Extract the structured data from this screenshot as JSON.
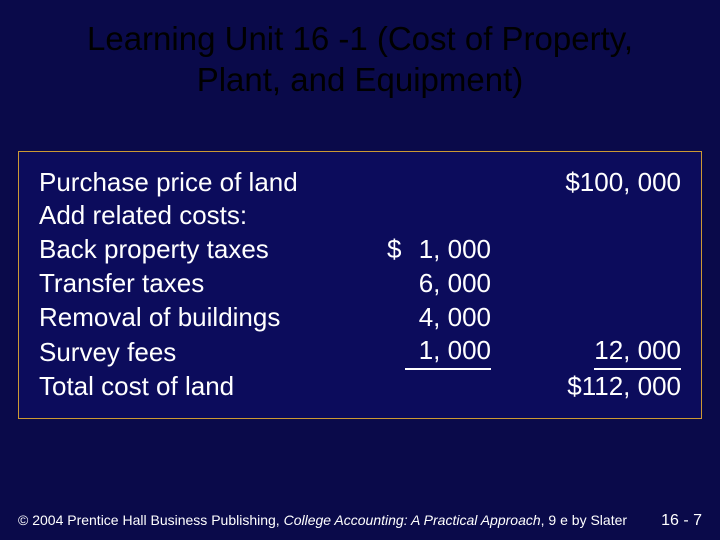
{
  "title": "Learning Unit 16 -1 (Cost of Property, Plant, and Equipment)",
  "rows": {
    "purchase": {
      "label": "Purchase price of land",
      "right": "$100, 000"
    },
    "add": {
      "label": "Add related costs:"
    },
    "back_taxes": {
      "label": "Back property taxes",
      "mid_dollar": "$",
      "mid_num": "1, 000"
    },
    "transfer": {
      "label": "Transfer taxes",
      "mid_num": "6, 000"
    },
    "removal": {
      "label": "Removal of buildings",
      "mid_num": "4, 000"
    },
    "survey": {
      "label": "Survey fees",
      "mid_num": "1, 000",
      "right": "12, 000"
    },
    "total": {
      "label": "Total cost of land",
      "right": "$112, 000"
    }
  },
  "footer": {
    "copyright_a": "© 2004 Prentice Hall Business Publishing, ",
    "copyright_italic": "College Accounting: A Practical Approach",
    "copyright_b": ", 9 e by Slater",
    "page": "16 - 7"
  },
  "colors": {
    "background": "#0a0a4a",
    "box_bg": "#0c0c5c",
    "box_border": "#cc9933",
    "title_color": "#000000",
    "text_color": "#ffffff"
  },
  "typography": {
    "title_fontsize": 33,
    "body_fontsize": 26,
    "footer_fontsize": 14
  }
}
